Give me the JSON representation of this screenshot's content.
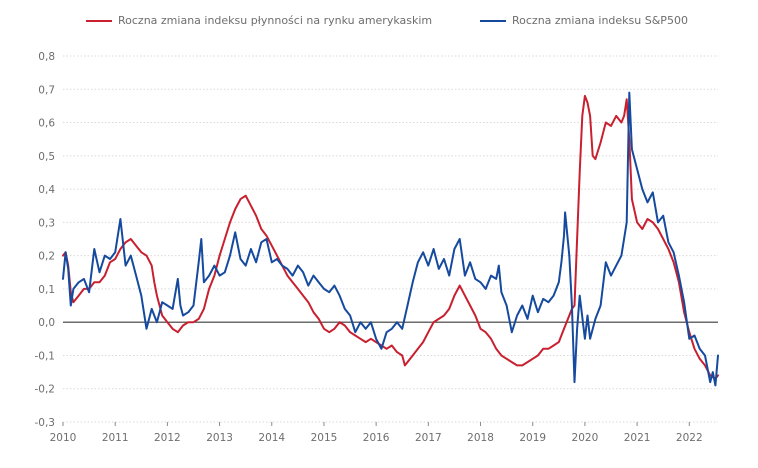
{
  "colors": {
    "red": "#c8202f",
    "blue": "#164a9e",
    "grid": "#d9d9d9",
    "axis_text": "#6e6e6e"
  },
  "chart_data": {
    "type": "line",
    "grid": true,
    "legend_position": "top",
    "ylim": [
      -0.3,
      0.8
    ],
    "xlim": [
      2010,
      2022.55
    ],
    "y_ticks": [
      "0,8",
      "0,7",
      "0,6",
      "0,5",
      "0,4",
      "0,3",
      "0,2",
      "0,1",
      "0,0",
      "-0,1",
      "-0,2",
      "-0,3"
    ],
    "x_ticks": [
      "2010",
      "2011",
      "2012",
      "2013",
      "2014",
      "2015",
      "2016",
      "2017",
      "2018",
      "2019",
      "2020",
      "2021",
      "2022"
    ],
    "series": [
      {
        "name": "Roczna zmiana indeksu płynności na rynku amerykaskim",
        "color": "#c8202f",
        "points": [
          [
            2010.0,
            0.2
          ],
          [
            2010.05,
            0.21
          ],
          [
            2010.1,
            0.17
          ],
          [
            2010.15,
            0.09
          ],
          [
            2010.2,
            0.06
          ],
          [
            2010.3,
            0.08
          ],
          [
            2010.4,
            0.1
          ],
          [
            2010.5,
            0.1
          ],
          [
            2010.6,
            0.12
          ],
          [
            2010.7,
            0.12
          ],
          [
            2010.8,
            0.14
          ],
          [
            2010.9,
            0.18
          ],
          [
            2011.0,
            0.19
          ],
          [
            2011.1,
            0.22
          ],
          [
            2011.2,
            0.24
          ],
          [
            2011.3,
            0.25
          ],
          [
            2011.4,
            0.23
          ],
          [
            2011.5,
            0.21
          ],
          [
            2011.6,
            0.2
          ],
          [
            2011.7,
            0.17
          ],
          [
            2011.75,
            0.12
          ],
          [
            2011.8,
            0.08
          ],
          [
            2011.9,
            0.02
          ],
          [
            2012.0,
            0.0
          ],
          [
            2012.1,
            -0.02
          ],
          [
            2012.2,
            -0.03
          ],
          [
            2012.3,
            -0.01
          ],
          [
            2012.4,
            0.0
          ],
          [
            2012.5,
            0.0
          ],
          [
            2012.6,
            0.01
          ],
          [
            2012.7,
            0.04
          ],
          [
            2012.8,
            0.1
          ],
          [
            2012.9,
            0.14
          ],
          [
            2013.0,
            0.2
          ],
          [
            2013.1,
            0.25
          ],
          [
            2013.2,
            0.3
          ],
          [
            2013.3,
            0.34
          ],
          [
            2013.4,
            0.37
          ],
          [
            2013.5,
            0.38
          ],
          [
            2013.6,
            0.35
          ],
          [
            2013.7,
            0.32
          ],
          [
            2013.8,
            0.28
          ],
          [
            2013.9,
            0.26
          ],
          [
            2014.0,
            0.23
          ],
          [
            2014.1,
            0.2
          ],
          [
            2014.2,
            0.17
          ],
          [
            2014.3,
            0.14
          ],
          [
            2014.4,
            0.12
          ],
          [
            2014.5,
            0.1
          ],
          [
            2014.6,
            0.08
          ],
          [
            2014.7,
            0.06
          ],
          [
            2014.8,
            0.03
          ],
          [
            2014.9,
            0.01
          ],
          [
            2015.0,
            -0.02
          ],
          [
            2015.1,
            -0.03
          ],
          [
            2015.2,
            -0.02
          ],
          [
            2015.3,
            0.0
          ],
          [
            2015.4,
            -0.01
          ],
          [
            2015.5,
            -0.03
          ],
          [
            2015.6,
            -0.04
          ],
          [
            2015.7,
            -0.05
          ],
          [
            2015.8,
            -0.06
          ],
          [
            2015.9,
            -0.05
          ],
          [
            2016.0,
            -0.06
          ],
          [
            2016.1,
            -0.07
          ],
          [
            2016.2,
            -0.08
          ],
          [
            2016.3,
            -0.07
          ],
          [
            2016.4,
            -0.09
          ],
          [
            2016.5,
            -0.1
          ],
          [
            2016.55,
            -0.13
          ],
          [
            2016.6,
            -0.12
          ],
          [
            2016.7,
            -0.1
          ],
          [
            2016.8,
            -0.08
          ],
          [
            2016.9,
            -0.06
          ],
          [
            2017.0,
            -0.03
          ],
          [
            2017.1,
            0.0
          ],
          [
            2017.2,
            0.01
          ],
          [
            2017.3,
            0.02
          ],
          [
            2017.4,
            0.04
          ],
          [
            2017.5,
            0.08
          ],
          [
            2017.6,
            0.11
          ],
          [
            2017.7,
            0.08
          ],
          [
            2017.8,
            0.05
          ],
          [
            2017.9,
            0.02
          ],
          [
            2018.0,
            -0.02
          ],
          [
            2018.1,
            -0.03
          ],
          [
            2018.2,
            -0.05
          ],
          [
            2018.3,
            -0.08
          ],
          [
            2018.4,
            -0.1
          ],
          [
            2018.5,
            -0.11
          ],
          [
            2018.6,
            -0.12
          ],
          [
            2018.7,
            -0.13
          ],
          [
            2018.8,
            -0.13
          ],
          [
            2018.9,
            -0.12
          ],
          [
            2019.0,
            -0.11
          ],
          [
            2019.1,
            -0.1
          ],
          [
            2019.2,
            -0.08
          ],
          [
            2019.3,
            -0.08
          ],
          [
            2019.4,
            -0.07
          ],
          [
            2019.5,
            -0.06
          ],
          [
            2019.6,
            -0.02
          ],
          [
            2019.7,
            0.02
          ],
          [
            2019.75,
            0.04
          ],
          [
            2019.8,
            0.05
          ],
          [
            2019.85,
            0.25
          ],
          [
            2019.9,
            0.45
          ],
          [
            2019.95,
            0.62
          ],
          [
            2020.0,
            0.68
          ],
          [
            2020.05,
            0.66
          ],
          [
            2020.1,
            0.62
          ],
          [
            2020.15,
            0.5
          ],
          [
            2020.2,
            0.49
          ],
          [
            2020.3,
            0.54
          ],
          [
            2020.4,
            0.6
          ],
          [
            2020.5,
            0.59
          ],
          [
            2020.6,
            0.62
          ],
          [
            2020.7,
            0.6
          ],
          [
            2020.75,
            0.62
          ],
          [
            2020.8,
            0.67
          ],
          [
            2020.85,
            0.55
          ],
          [
            2020.9,
            0.37
          ],
          [
            2021.0,
            0.3
          ],
          [
            2021.1,
            0.28
          ],
          [
            2021.2,
            0.31
          ],
          [
            2021.3,
            0.3
          ],
          [
            2021.4,
            0.28
          ],
          [
            2021.5,
            0.25
          ],
          [
            2021.6,
            0.22
          ],
          [
            2021.7,
            0.18
          ],
          [
            2021.8,
            0.12
          ],
          [
            2021.9,
            0.03
          ],
          [
            2022.0,
            -0.03
          ],
          [
            2022.1,
            -0.08
          ],
          [
            2022.2,
            -0.11
          ],
          [
            2022.3,
            -0.13
          ],
          [
            2022.4,
            -0.16
          ],
          [
            2022.5,
            -0.17
          ],
          [
            2022.55,
            -0.16
          ]
        ]
      },
      {
        "name": "Roczna zmiana indeksu S&P500",
        "color": "#164a9e",
        "points": [
          [
            2010.0,
            0.13
          ],
          [
            2010.05,
            0.21
          ],
          [
            2010.1,
            0.16
          ],
          [
            2010.15,
            0.05
          ],
          [
            2010.2,
            0.1
          ],
          [
            2010.3,
            0.12
          ],
          [
            2010.4,
            0.13
          ],
          [
            2010.5,
            0.09
          ],
          [
            2010.6,
            0.22
          ],
          [
            2010.7,
            0.15
          ],
          [
            2010.8,
            0.2
          ],
          [
            2010.9,
            0.19
          ],
          [
            2011.0,
            0.21
          ],
          [
            2011.1,
            0.31
          ],
          [
            2011.2,
            0.17
          ],
          [
            2011.3,
            0.2
          ],
          [
            2011.4,
            0.14
          ],
          [
            2011.5,
            0.08
          ],
          [
            2011.6,
            -0.02
          ],
          [
            2011.7,
            0.04
          ],
          [
            2011.8,
            0.0
          ],
          [
            2011.9,
            0.06
          ],
          [
            2012.0,
            0.05
          ],
          [
            2012.1,
            0.04
          ],
          [
            2012.2,
            0.13
          ],
          [
            2012.25,
            0.05
          ],
          [
            2012.3,
            0.02
          ],
          [
            2012.4,
            0.03
          ],
          [
            2012.5,
            0.05
          ],
          [
            2012.6,
            0.18
          ],
          [
            2012.65,
            0.25
          ],
          [
            2012.7,
            0.12
          ],
          [
            2012.8,
            0.14
          ],
          [
            2012.9,
            0.17
          ],
          [
            2013.0,
            0.14
          ],
          [
            2013.1,
            0.15
          ],
          [
            2013.2,
            0.2
          ],
          [
            2013.3,
            0.27
          ],
          [
            2013.4,
            0.19
          ],
          [
            2013.5,
            0.17
          ],
          [
            2013.6,
            0.22
          ],
          [
            2013.7,
            0.18
          ],
          [
            2013.8,
            0.24
          ],
          [
            2013.9,
            0.25
          ],
          [
            2014.0,
            0.18
          ],
          [
            2014.1,
            0.19
          ],
          [
            2014.2,
            0.17
          ],
          [
            2014.3,
            0.16
          ],
          [
            2014.4,
            0.14
          ],
          [
            2014.5,
            0.17
          ],
          [
            2014.6,
            0.15
          ],
          [
            2014.7,
            0.11
          ],
          [
            2014.8,
            0.14
          ],
          [
            2014.9,
            0.12
          ],
          [
            2015.0,
            0.1
          ],
          [
            2015.1,
            0.09
          ],
          [
            2015.2,
            0.11
          ],
          [
            2015.3,
            0.08
          ],
          [
            2015.4,
            0.04
          ],
          [
            2015.5,
            0.02
          ],
          [
            2015.6,
            -0.03
          ],
          [
            2015.7,
            0.0
          ],
          [
            2015.8,
            -0.02
          ],
          [
            2015.9,
            0.0
          ],
          [
            2016.0,
            -0.05
          ],
          [
            2016.1,
            -0.08
          ],
          [
            2016.2,
            -0.03
          ],
          [
            2016.3,
            -0.02
          ],
          [
            2016.4,
            0.0
          ],
          [
            2016.5,
            -0.02
          ],
          [
            2016.6,
            0.05
          ],
          [
            2016.7,
            0.12
          ],
          [
            2016.8,
            0.18
          ],
          [
            2016.9,
            0.21
          ],
          [
            2017.0,
            0.17
          ],
          [
            2017.1,
            0.22
          ],
          [
            2017.2,
            0.16
          ],
          [
            2017.3,
            0.19
          ],
          [
            2017.4,
            0.14
          ],
          [
            2017.5,
            0.22
          ],
          [
            2017.6,
            0.25
          ],
          [
            2017.7,
            0.14
          ],
          [
            2017.8,
            0.18
          ],
          [
            2017.9,
            0.13
          ],
          [
            2018.0,
            0.12
          ],
          [
            2018.1,
            0.1
          ],
          [
            2018.2,
            0.14
          ],
          [
            2018.3,
            0.13
          ],
          [
            2018.35,
            0.17
          ],
          [
            2018.4,
            0.09
          ],
          [
            2018.5,
            0.05
          ],
          [
            2018.6,
            -0.03
          ],
          [
            2018.7,
            0.02
          ],
          [
            2018.8,
            0.05
          ],
          [
            2018.9,
            0.01
          ],
          [
            2019.0,
            0.08
          ],
          [
            2019.1,
            0.03
          ],
          [
            2019.2,
            0.07
          ],
          [
            2019.3,
            0.06
          ],
          [
            2019.4,
            0.08
          ],
          [
            2019.5,
            0.12
          ],
          [
            2019.55,
            0.18
          ],
          [
            2019.6,
            0.26
          ],
          [
            2019.62,
            0.33
          ],
          [
            2019.7,
            0.2
          ],
          [
            2019.75,
            0.05
          ],
          [
            2019.8,
            -0.18
          ],
          [
            2019.85,
            -0.02
          ],
          [
            2019.9,
            0.08
          ],
          [
            2020.0,
            -0.05
          ],
          [
            2020.05,
            0.02
          ],
          [
            2020.1,
            -0.05
          ],
          [
            2020.2,
            0.01
          ],
          [
            2020.3,
            0.05
          ],
          [
            2020.4,
            0.18
          ],
          [
            2020.5,
            0.14
          ],
          [
            2020.6,
            0.17
          ],
          [
            2020.7,
            0.2
          ],
          [
            2020.8,
            0.3
          ],
          [
            2020.85,
            0.69
          ],
          [
            2020.9,
            0.52
          ],
          [
            2021.0,
            0.46
          ],
          [
            2021.1,
            0.4
          ],
          [
            2021.2,
            0.36
          ],
          [
            2021.3,
            0.39
          ],
          [
            2021.4,
            0.3
          ],
          [
            2021.5,
            0.32
          ],
          [
            2021.6,
            0.24
          ],
          [
            2021.7,
            0.21
          ],
          [
            2021.8,
            0.14
          ],
          [
            2021.9,
            0.06
          ],
          [
            2022.0,
            -0.05
          ],
          [
            2022.1,
            -0.04
          ],
          [
            2022.2,
            -0.08
          ],
          [
            2022.3,
            -0.1
          ],
          [
            2022.4,
            -0.18
          ],
          [
            2022.45,
            -0.15
          ],
          [
            2022.5,
            -0.19
          ],
          [
            2022.55,
            -0.1
          ]
        ]
      }
    ]
  }
}
